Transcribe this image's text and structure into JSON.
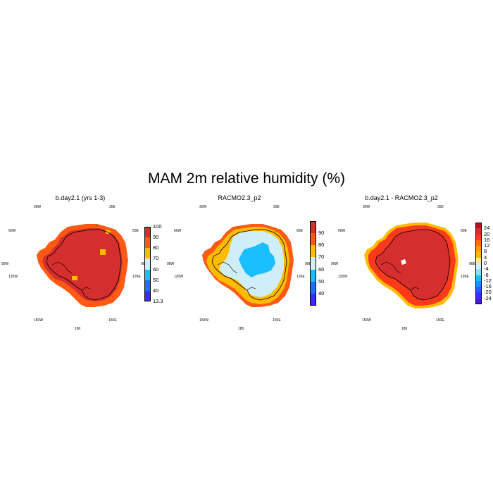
{
  "title": "MAM 2m relative humidity (%)",
  "panels": [
    {
      "title": "b.day2.1 (yrs 1-3)",
      "colorbar": {
        "labels": [
          "100",
          "90",
          "80",
          "70",
          "60",
          "50",
          "40",
          "13.3"
        ],
        "colors": [
          "#d42e2e",
          "#ff5a14",
          "#ffbb00",
          "#cfeef8",
          "#19bfff",
          "#1f6fff",
          "#3b2bff"
        ]
      },
      "fields": {
        "interior": "#d42e2e",
        "coast": "#ff5a14",
        "accent": "#ffbb00"
      }
    },
    {
      "title": "RACMO2.3_p2",
      "colorbar": {
        "labels": [
          "90",
          "80",
          "70",
          "60",
          "50",
          "40"
        ],
        "colors": [
          "#d42e2e",
          "#ff5a14",
          "#ffbb00",
          "#cfeef8",
          "#19bfff",
          "#1f6fff",
          "#3b2bff"
        ]
      },
      "fields": {
        "interior": "#cfeef8",
        "core": "#19bfff",
        "coast": "#ffbb00",
        "edge": "#ff5a14"
      }
    },
    {
      "title": "b.day2.1 - RACMO2.3_p2",
      "colorbar": {
        "labels": [
          "24",
          "20",
          "16",
          "12",
          "8",
          "4",
          "0",
          "-4",
          "-8",
          "-12",
          "-16",
          "-20",
          "-24"
        ],
        "colors": [
          "#b40f1e",
          "#d42e2e",
          "#ff3a1a",
          "#ff6a14",
          "#ff9a10",
          "#ffbb00",
          "#fde79a",
          "#cfeef8",
          "#8fdcff",
          "#19bfff",
          "#1f8fff",
          "#1f5fff",
          "#3b2bff",
          "#4b1bd0"
        ]
      },
      "fields": {
        "interior": "#d42e2e",
        "coast": "#ff3a1a",
        "accent": "#ffbb00"
      }
    }
  ],
  "longitude_labels": [
    "30W",
    "30E",
    "60W",
    "60E",
    "90W",
    "90E",
    "120W",
    "120E",
    "150W",
    "150E",
    "180"
  ]
}
